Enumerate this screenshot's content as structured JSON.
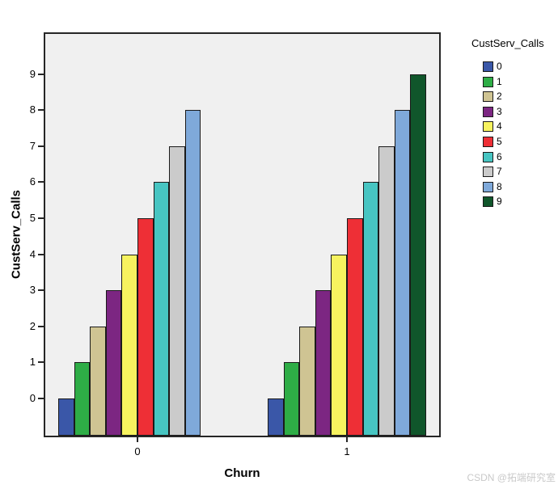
{
  "watermark": "CSDN @拓端研究室",
  "chart_data": {
    "type": "bar",
    "title": "",
    "xlabel": "Churn",
    "ylabel": "CustServ_Calls",
    "categories": [
      "0",
      "1"
    ],
    "series": [
      {
        "name": "0",
        "color": "#3A57A8",
        "values": [
          0,
          0
        ]
      },
      {
        "name": "1",
        "color": "#2EAD46",
        "values": [
          1,
          1
        ]
      },
      {
        "name": "2",
        "color": "#CFC493",
        "values": [
          2,
          2
        ]
      },
      {
        "name": "3",
        "color": "#7C2682",
        "values": [
          3,
          3
        ]
      },
      {
        "name": "4",
        "color": "#F7F35F",
        "values": [
          4,
          4
        ]
      },
      {
        "name": "5",
        "color": "#EE2F36",
        "values": [
          5,
          5
        ]
      },
      {
        "name": "6",
        "color": "#47C5C2",
        "values": [
          6,
          6
        ]
      },
      {
        "name": "7",
        "color": "#CBCBCB",
        "values": [
          7,
          7
        ]
      },
      {
        "name": "8",
        "color": "#7FA9DA",
        "values": [
          8,
          8
        ]
      },
      {
        "name": "9",
        "color": "#10562B",
        "values": [
          null,
          9
        ]
      }
    ],
    "legend": {
      "title": "CustServ_Calls",
      "position": "right"
    },
    "yticks": [
      0,
      1,
      2,
      3,
      4,
      5,
      6,
      7,
      8,
      9
    ],
    "ylim": [
      -1.05,
      10.15
    ],
    "grid": false,
    "plot_bg": "#F0F0F0",
    "bar_outline": "#1A1A1A"
  }
}
